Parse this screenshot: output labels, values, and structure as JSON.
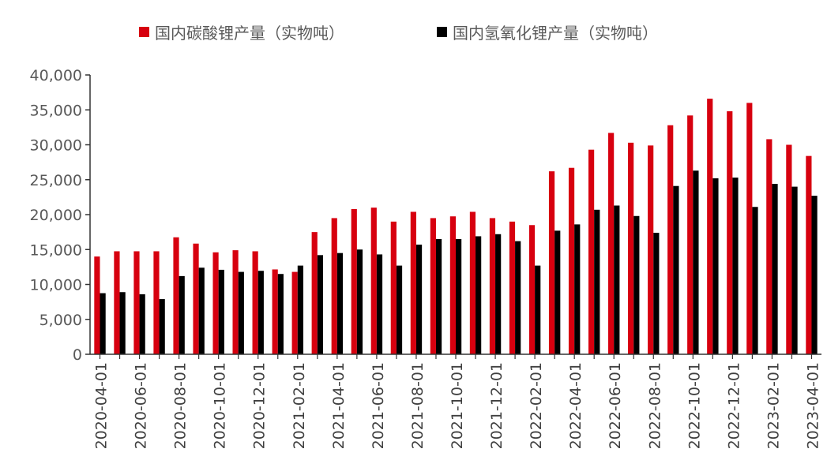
{
  "chart_data": {
    "type": "bar",
    "title": "",
    "xlabel": "",
    "ylabel": "",
    "ylim": [
      0,
      40000
    ],
    "yticks": [
      0,
      5000,
      10000,
      15000,
      20000,
      25000,
      30000,
      35000,
      40000
    ],
    "ytick_labels": [
      "0",
      "5,000",
      "10,000",
      "15,000",
      "20,000",
      "25,000",
      "30,000",
      "35,000",
      "40,000"
    ],
    "grid": false,
    "legend_position": "top",
    "categories": [
      "2020-04-01",
      "2020-05-01",
      "2020-06-01",
      "2020-07-01",
      "2020-08-01",
      "2020-09-01",
      "2020-10-01",
      "2020-11-01",
      "2020-12-01",
      "2021-01-01",
      "2021-02-01",
      "2021-03-01",
      "2021-04-01",
      "2021-05-01",
      "2021-06-01",
      "2021-07-01",
      "2021-08-01",
      "2021-09-01",
      "2021-10-01",
      "2021-11-01",
      "2021-12-01",
      "2022-01-01",
      "2022-02-01",
      "2022-03-01",
      "2022-04-01",
      "2022-05-01",
      "2022-06-01",
      "2022-07-01",
      "2022-08-01",
      "2022-09-01",
      "2022-10-01",
      "2022-11-01",
      "2022-12-01",
      "2023-01-01",
      "2023-02-01",
      "2023-03-01",
      "2023-04-01"
    ],
    "xtick_labels": [
      "2020-04-01",
      "",
      "2020-06-01",
      "",
      "2020-08-01",
      "",
      "2020-10-01",
      "",
      "2020-12-01",
      "",
      "2021-02-01",
      "",
      "2021-04-01",
      "",
      "2021-06-01",
      "",
      "2021-08-01",
      "",
      "2021-10-01",
      "",
      "2021-12-01",
      "",
      "2022-02-01",
      "",
      "2022-04-01",
      "",
      "2022-06-01",
      "",
      "2022-08-01",
      "",
      "2022-10-01",
      "",
      "2022-12-01",
      "",
      "2023-02-01",
      "",
      "2023-04-01"
    ],
    "series": [
      {
        "name": "国内碳酸锂产量（实物吨）",
        "color": "#d7000f",
        "values": [
          14000,
          14750,
          14750,
          14750,
          16750,
          15850,
          14600,
          14900,
          14750,
          12150,
          11800,
          17500,
          19500,
          20800,
          21000,
          19000,
          20400,
          19500,
          19750,
          20400,
          19500,
          19000,
          18500,
          26200,
          26700,
          29300,
          31700,
          30300,
          29900,
          32800,
          34200,
          36600,
          34800,
          36000,
          30800,
          30000,
          28400
        ]
      },
      {
        "name": "国内氢氧化锂产量（实物吨）",
        "color": "#000000",
        "values": [
          8750,
          8900,
          8600,
          7900,
          11200,
          12400,
          12100,
          11800,
          11950,
          11500,
          12700,
          14200,
          14500,
          15000,
          14300,
          12700,
          15700,
          16500,
          16500,
          16900,
          17200,
          16200,
          12700,
          17700,
          18600,
          20700,
          21300,
          19800,
          17400,
          24100,
          26300,
          25200,
          25300,
          21100,
          24400,
          24000,
          22700
        ]
      }
    ]
  }
}
